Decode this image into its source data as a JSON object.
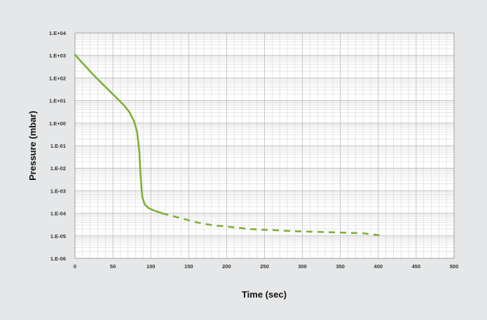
{
  "chart_data": {
    "type": "line",
    "title": "",
    "xlabel": "Time (sec)",
    "ylabel": "Pressure (mbar)",
    "xlim": [
      0,
      500
    ],
    "ylim": [
      1e-06,
      10000.0
    ],
    "yscale": "log",
    "grid": true,
    "legend": "none",
    "x_ticks": [
      0,
      50,
      100,
      150,
      200,
      250,
      300,
      350,
      400,
      450,
      500
    ],
    "x_tick_labels": [
      "0",
      "50",
      "100",
      "150",
      "200",
      "250",
      "300",
      "350",
      "400",
      "450",
      "500"
    ],
    "y_ticks": [
      10000.0,
      1000.0,
      100.0,
      10.0,
      1.0,
      0.1,
      0.01,
      0.001,
      0.0001,
      1e-05,
      1e-06
    ],
    "y_tick_labels": [
      "1.E+04",
      "1.E+03",
      "1.E+02",
      "1.E+01",
      "1.E+00",
      "1.E-01",
      "1.E-02",
      "1.E-03",
      "1.E-04",
      "1.E-05",
      "1.E-06"
    ],
    "colors": {
      "background": "#e6e7e8",
      "plot_area": "#ffffff",
      "grid_major": "#b3b3b3",
      "grid_minor": "#d6d6d6",
      "series": "#7fb03a"
    },
    "series": [
      {
        "style": "solid",
        "points": [
          [
            0,
            1100
          ],
          [
            5,
            700
          ],
          [
            15,
            300
          ],
          [
            25,
            130
          ],
          [
            35,
            60
          ],
          [
            45,
            28
          ],
          [
            55,
            13
          ],
          [
            65,
            6
          ],
          [
            72,
            3
          ],
          [
            78,
            1.2
          ],
          [
            82,
            0.4
          ],
          [
            85,
            0.05
          ],
          [
            86,
            0.01
          ],
          [
            87,
            0.003
          ],
          [
            88,
            0.001
          ],
          [
            89,
            0.0005
          ],
          [
            92,
            0.00025
          ],
          [
            97,
            0.00017
          ],
          [
            105,
            0.00013
          ],
          [
            115,
            0.0001
          ]
        ]
      },
      {
        "style": "dashed",
        "points": [
          [
            115,
            0.0001
          ],
          [
            140,
            6e-05
          ],
          [
            160,
            4e-05
          ],
          [
            180,
            3e-05
          ],
          [
            200,
            2.6e-05
          ],
          [
            230,
            2e-05
          ],
          [
            260,
            1.8e-05
          ],
          [
            290,
            1.6e-05
          ],
          [
            320,
            1.5e-05
          ],
          [
            350,
            1.4e-05
          ],
          [
            380,
            1.3e-05
          ],
          [
            408,
            1e-05
          ]
        ]
      }
    ]
  }
}
